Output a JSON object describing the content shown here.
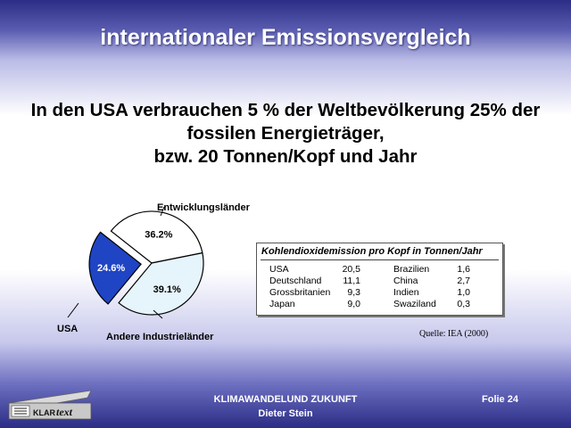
{
  "slide": {
    "title": "internationaler Emissionsvergleich",
    "headline": [
      "In den USA verbrauchen 5 % der Weltbevölkerung 25% der",
      "fossilen Energieträger,",
      "bzw. 20 Tonnen/Kopf und Jahr"
    ]
  },
  "chart_data": {
    "type": "pie",
    "slices": [
      {
        "name": "Entwicklungsländer",
        "value": 36.2,
        "label": "36.2%",
        "color": "#ffffff"
      },
      {
        "name": "Andere Industrieländer",
        "value": 39.1,
        "label": "39.1%",
        "color": "#e6f4fb"
      },
      {
        "name": "USA",
        "value": 24.6,
        "label": "24.6%",
        "color": "#1f44c4",
        "exploded": true
      }
    ]
  },
  "table": {
    "title": "Kohlendioxidemission pro Kopf in Tonnen/Jahr",
    "left": [
      {
        "country": "USA",
        "value": "20,5"
      },
      {
        "country": "Deutschland",
        "value": "11,1"
      },
      {
        "country": "Grossbritanien",
        "value": "9,3"
      },
      {
        "country": "Japan",
        "value": "9,0"
      }
    ],
    "right": [
      {
        "country": "Brazilien",
        "value": "1,6"
      },
      {
        "country": "China",
        "value": "2,7"
      },
      {
        "country": "Indien",
        "value": "1,0"
      },
      {
        "country": "Swaziland",
        "value": "0,3"
      }
    ]
  },
  "source": "Quelle: IEA (2000)",
  "footer": {
    "line1": "KLIMAWANDELUND ZUKUNFT",
    "line2": "Dieter Stein",
    "slide_number": "Folie 24",
    "logo_text_a": "KLAR",
    "logo_text_b": "text"
  },
  "colors": {
    "background_top": "#2b2d86",
    "usa": "#1f44c4",
    "industrial": "#e6f4fb"
  }
}
